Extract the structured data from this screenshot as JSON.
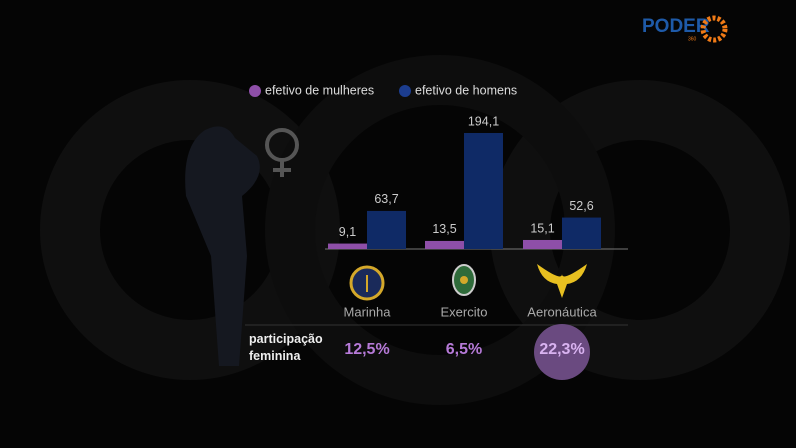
{
  "brand": {
    "name": "PODER",
    "suffix": "360"
  },
  "chart_data": {
    "type": "bar",
    "categories": [
      "Marinha",
      "Exercito",
      "Aeronáutica"
    ],
    "legend_position": "top",
    "series": [
      {
        "name": "efetivo de mulheres",
        "color": "#8e4fa8",
        "values": [
          9.1,
          13.5,
          15.1
        ],
        "value_labels": [
          "9,1",
          "13,5",
          "15,1"
        ]
      },
      {
        "name": "efetivo de homens",
        "color": "#0f2a66",
        "values": [
          63.7,
          194.1,
          52.6
        ],
        "value_labels": [
          "63,7",
          "194,1",
          "52,6"
        ]
      }
    ],
    "participation": {
      "label": "participação feminina",
      "values": [
        12.5,
        6.5,
        22.3
      ],
      "value_labels": [
        "12,5%",
        "6,5%",
        "22,3%"
      ],
      "color": "#b67ad8",
      "highlight": 2
    }
  }
}
